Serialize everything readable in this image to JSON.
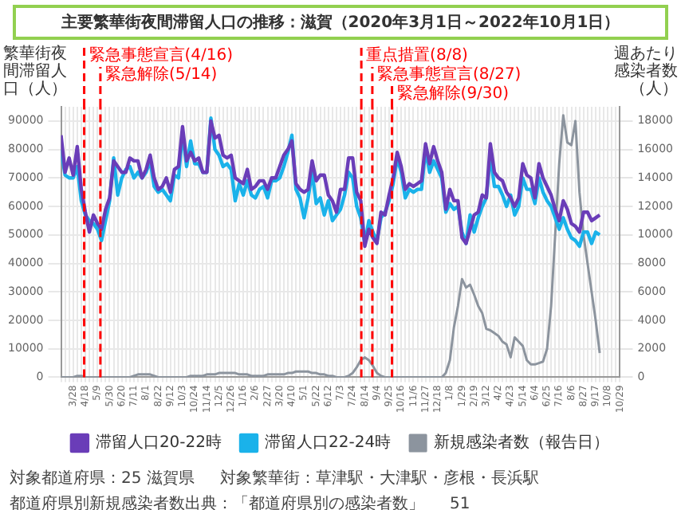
{
  "chart_data": {
    "type": "line",
    "title": "主要繁華街夜間滞留人口の推移：滋賀（2020年3月1日～2022年10月1日）",
    "ylabel": "繁華街夜間滞留人口（人）",
    "y2label": "週あたり感染者数（人）",
    "x": [
      "2020-03-07",
      "2020-03-14",
      "2020-03-21",
      "2020-03-28",
      "2020-04-04",
      "2020-04-11",
      "2020-04-18",
      "2020-04-25",
      "2020-05-02",
      "2020-05-09",
      "2020-05-16",
      "2020-05-23",
      "2020-05-30",
      "2020-06-06",
      "2020-06-13",
      "2020-06-20",
      "2020-06-27",
      "2020-07-04",
      "2020-07-11",
      "2020-07-18",
      "2020-07-25",
      "2020-08-01",
      "2020-08-08",
      "2020-08-15",
      "2020-08-22",
      "2020-08-29",
      "2020-09-05",
      "2020-09-12",
      "2020-09-19",
      "2020-09-26",
      "2020-10-03",
      "2020-10-10",
      "2020-10-17",
      "2020-10-24",
      "2020-10-31",
      "2020-11-07",
      "2020-11-14",
      "2020-11-21",
      "2020-11-28",
      "2020-12-05",
      "2020-12-12",
      "2020-12-19",
      "2020-12-26",
      "2021-01-02",
      "2021-01-09",
      "2021-01-16",
      "2021-01-23",
      "2021-01-30",
      "2021-02-06",
      "2021-02-13",
      "2021-02-20",
      "2021-02-27",
      "2021-03-06",
      "2021-03-13",
      "2021-03-20",
      "2021-03-27",
      "2021-04-03",
      "2021-04-10",
      "2021-04-17",
      "2021-04-24",
      "2021-05-01",
      "2021-05-08",
      "2021-05-15",
      "2021-05-22",
      "2021-05-29",
      "2021-06-05",
      "2021-06-12",
      "2021-06-19",
      "2021-06-26",
      "2021-07-03",
      "2021-07-10",
      "2021-07-17",
      "2021-07-24",
      "2021-07-31",
      "2021-08-07",
      "2021-08-14",
      "2021-08-21",
      "2021-08-28",
      "2021-09-04",
      "2021-09-11",
      "2021-09-18",
      "2021-09-25",
      "2021-10-02",
      "2021-10-09",
      "2021-10-16",
      "2021-10-23",
      "2021-10-30",
      "2021-11-06",
      "2021-11-13",
      "2021-11-20",
      "2021-11-27",
      "2021-12-04",
      "2021-12-11",
      "2021-12-18",
      "2021-12-25",
      "2022-01-01",
      "2022-01-08",
      "2022-01-15",
      "2022-01-22",
      "2022-01-29",
      "2022-02-05",
      "2022-02-12",
      "2022-02-19",
      "2022-02-26",
      "2022-03-05",
      "2022-03-12",
      "2022-03-19",
      "2022-03-26",
      "2022-04-02",
      "2022-04-09",
      "2022-04-16",
      "2022-04-23",
      "2022-04-30",
      "2022-05-07",
      "2022-05-14",
      "2022-05-21",
      "2022-05-28",
      "2022-06-04",
      "2022-06-11",
      "2022-06-18",
      "2022-06-25",
      "2022-07-02",
      "2022-07-09",
      "2022-07-16",
      "2022-07-23",
      "2022-07-30",
      "2022-08-06",
      "2022-08-13",
      "2022-08-20",
      "2022-08-27",
      "2022-09-03",
      "2022-09-10",
      "2022-09-17",
      "2022-09-24"
    ],
    "series": [
      {
        "name": "滞留人口20-22時",
        "color": "#6a3db8",
        "values": [
          85000,
          72000,
          77000,
          71000,
          81000,
          66000,
          58000,
          51000,
          57000,
          54000,
          52000,
          59000,
          63000,
          76000,
          74000,
          72000,
          72000,
          77000,
          76000,
          76000,
          70000,
          73000,
          78000,
          70000,
          66000,
          67000,
          70000,
          65000,
          73000,
          74000,
          88000,
          76000,
          79000,
          76000,
          77000,
          72000,
          72000,
          90000,
          84000,
          85000,
          78000,
          77000,
          78000,
          70000,
          69000,
          68000,
          73000,
          66000,
          67000,
          69000,
          69000,
          66000,
          70000,
          70000,
          74000,
          78000,
          80000,
          83000,
          68000,
          66000,
          65000,
          66000,
          76000,
          69000,
          71000,
          71000,
          64000,
          62000,
          58000,
          66000,
          66000,
          77000,
          77000,
          65000,
          62000,
          46000,
          52000,
          49000,
          47000,
          58000,
          57000,
          64000,
          70000,
          79000,
          74000,
          66000,
          68000,
          67000,
          68000,
          69000,
          82000,
          75000,
          81000,
          76000,
          72000,
          59000,
          66000,
          62000,
          62000,
          49000,
          47000,
          52000,
          57000,
          58000,
          64000,
          63000,
          82000,
          72000,
          70000,
          69000,
          65000,
          63000,
          60000,
          63000,
          75000,
          71000,
          70000,
          63000,
          75000,
          70000,
          67000,
          64000,
          59000,
          55000,
          62000,
          59000,
          54000,
          53000,
          51000,
          58000,
          58000,
          55000,
          56000,
          57000
        ]
      },
      {
        "name": "滞留人口22-24時",
        "color": "#1ab2ea",
        "values": [
          80000,
          71000,
          70000,
          70000,
          74000,
          62000,
          57000,
          55000,
          54000,
          52000,
          48000,
          55000,
          62000,
          77000,
          64000,
          70000,
          73000,
          74000,
          70000,
          72000,
          70000,
          72000,
          76000,
          67000,
          65000,
          66000,
          64000,
          62000,
          71000,
          70000,
          86000,
          74000,
          83000,
          75000,
          75000,
          72000,
          72000,
          91000,
          80000,
          78000,
          74000,
          75000,
          73000,
          62000,
          68000,
          64000,
          69000,
          64000,
          63000,
          66000,
          67000,
          63000,
          69000,
          69000,
          70000,
          74000,
          79000,
          85000,
          66000,
          63000,
          56000,
          63000,
          72000,
          61000,
          63000,
          57000,
          62000,
          55000,
          57000,
          59000,
          64000,
          72000,
          70000,
          60000,
          56000,
          47000,
          55000,
          51000,
          48000,
          56000,
          58000,
          62000,
          68000,
          77000,
          72000,
          63000,
          66000,
          65000,
          66000,
          66000,
          80000,
          72000,
          76000,
          73000,
          70000,
          58000,
          61000,
          59000,
          60000,
          51000,
          47000,
          57000,
          51000,
          56000,
          60000,
          63000,
          78000,
          67000,
          67000,
          64000,
          60000,
          64000,
          57000,
          60000,
          70000,
          66000,
          66000,
          61000,
          70000,
          65000,
          62000,
          60000,
          56000,
          52000,
          56000,
          52000,
          49000,
          48000,
          46000,
          51000,
          51000,
          47000,
          51000,
          50000
        ]
      },
      {
        "name": "新規感染者数（報告日）",
        "color": "#8c949e",
        "axis": "y2",
        "values": [
          0,
          0,
          0,
          0,
          100,
          100,
          0,
          0,
          0,
          0,
          0,
          0,
          0,
          0,
          0,
          0,
          0,
          0,
          100,
          200,
          200,
          200,
          200,
          100,
          0,
          0,
          0,
          0,
          0,
          0,
          0,
          0,
          100,
          100,
          100,
          100,
          200,
          200,
          200,
          300,
          300,
          300,
          300,
          300,
          200,
          200,
          200,
          100,
          100,
          100,
          100,
          200,
          200,
          200,
          200,
          200,
          300,
          300,
          400,
          400,
          400,
          400,
          300,
          300,
          200,
          200,
          100,
          100,
          0,
          0,
          0,
          100,
          300,
          700,
          1200,
          1400,
          1200,
          800,
          300,
          100,
          0,
          0,
          0,
          0,
          0,
          0,
          0,
          0,
          0,
          0,
          0,
          0,
          0,
          0,
          0,
          300,
          1200,
          3500,
          5000,
          6900,
          6300,
          6500,
          5800,
          5000,
          4500,
          3400,
          3300,
          3100,
          2900,
          2500,
          2300,
          1400,
          2800,
          2500,
          2200,
          1200,
          900,
          900,
          1000,
          1100,
          2000,
          5000,
          10000,
          15000,
          18400,
          16500,
          16300,
          18000,
          13000,
          10000,
          8000,
          6000,
          4000,
          1700
        ]
      }
    ],
    "xlim": [
      "2020-03-07",
      "2022-10-29"
    ],
    "xticks": [
      {
        "value": "2020-03-07",
        "label": null
      },
      {
        "value": "2020-03-14",
        "label": null
      },
      {
        "value": "2020-03-21",
        "label": null
      },
      {
        "value": "2020-03-28",
        "label": "3/28"
      },
      {
        "value": "2020-04-04",
        "label": null
      },
      {
        "value": "2020-04-11",
        "label": null
      },
      {
        "value": "2020-04-18",
        "label": "4/18"
      },
      {
        "value": "2020-04-25",
        "label": null
      },
      {
        "value": "2020-05-02",
        "label": null
      },
      {
        "value": "2020-05-09",
        "label": "5/9"
      },
      {
        "value": "2020-05-16",
        "label": null
      },
      {
        "value": "2020-05-23",
        "label": null
      },
      {
        "value": "2020-05-30",
        "label": "5/30"
      },
      {
        "value": "2020-06-06",
        "label": null
      },
      {
        "value": "2020-06-13",
        "label": null
      },
      {
        "value": "2020-06-20",
        "label": "6/20"
      },
      {
        "value": "2020-06-27",
        "label": null
      },
      {
        "value": "2020-07-04",
        "label": null
      },
      {
        "value": "2020-07-11",
        "label": "7/11"
      },
      {
        "value": "2020-07-18",
        "label": null
      },
      {
        "value": "2020-07-25",
        "label": null
      },
      {
        "value": "2020-08-01",
        "label": "8/1"
      },
      {
        "value": "2020-08-08",
        "label": null
      },
      {
        "value": "2020-08-15",
        "label": null
      },
      {
        "value": "2020-08-22",
        "label": "8/22"
      },
      {
        "value": "2020-08-29",
        "label": null
      },
      {
        "value": "2020-09-05",
        "label": null
      },
      {
        "value": "2020-09-12",
        "label": "9/12"
      },
      {
        "value": "2020-09-19",
        "label": null
      },
      {
        "value": "2020-09-26",
        "label": null
      },
      {
        "value": "2020-10-03",
        "label": "10/3"
      },
      {
        "value": "2020-10-10",
        "label": null
      },
      {
        "value": "2020-10-17",
        "label": null
      },
      {
        "value": "2020-10-24",
        "label": "10/24"
      },
      {
        "value": "2020-10-31",
        "label": null
      },
      {
        "value": "2020-11-07",
        "label": null
      },
      {
        "value": "2020-11-14",
        "label": "11/14"
      },
      {
        "value": "2020-11-21",
        "label": null
      },
      {
        "value": "2020-11-28",
        "label": null
      },
      {
        "value": "2020-12-05",
        "label": "12/5"
      },
      {
        "value": "2020-12-12",
        "label": null
      },
      {
        "value": "2020-12-19",
        "label": null
      },
      {
        "value": "2020-12-26",
        "label": "12/26"
      },
      {
        "value": "2021-01-02",
        "label": null
      },
      {
        "value": "2021-01-09",
        "label": null
      },
      {
        "value": "2021-01-16",
        "label": "1/16"
      },
      {
        "value": "2021-01-23",
        "label": null
      },
      {
        "value": "2021-01-30",
        "label": null
      },
      {
        "value": "2021-02-06",
        "label": "2/6"
      },
      {
        "value": "2021-02-13",
        "label": null
      },
      {
        "value": "2021-02-20",
        "label": null
      },
      {
        "value": "2021-02-27",
        "label": "2/27"
      },
      {
        "value": "2021-03-06",
        "label": null
      },
      {
        "value": "2021-03-13",
        "label": null
      },
      {
        "value": "2021-03-20",
        "label": "3/20"
      },
      {
        "value": "2021-03-27",
        "label": null
      },
      {
        "value": "2021-04-03",
        "label": null
      },
      {
        "value": "2021-04-10",
        "label": "4/10"
      },
      {
        "value": "2021-04-17",
        "label": null
      },
      {
        "value": "2021-04-24",
        "label": null
      },
      {
        "value": "2021-05-01",
        "label": "5/1"
      },
      {
        "value": "2021-05-08",
        "label": null
      },
      {
        "value": "2021-05-15",
        "label": null
      },
      {
        "value": "2021-05-22",
        "label": "5/22"
      },
      {
        "value": "2021-05-29",
        "label": null
      },
      {
        "value": "2021-06-05",
        "label": null
      },
      {
        "value": "2021-06-12",
        "label": "6/12"
      },
      {
        "value": "2021-06-19",
        "label": null
      },
      {
        "value": "2021-06-26",
        "label": null
      },
      {
        "value": "2021-07-03",
        "label": "7/3"
      },
      {
        "value": "2021-07-10",
        "label": null
      },
      {
        "value": "2021-07-17",
        "label": null
      },
      {
        "value": "2021-07-24",
        "label": "7/24"
      },
      {
        "value": "2021-07-31",
        "label": null
      },
      {
        "value": "2021-08-07",
        "label": null
      },
      {
        "value": "2021-08-14",
        "label": "8/14"
      },
      {
        "value": "2021-08-21",
        "label": null
      },
      {
        "value": "2021-08-28",
        "label": null
      },
      {
        "value": "2021-09-04",
        "label": "9/4"
      },
      {
        "value": "2021-09-11",
        "label": null
      },
      {
        "value": "2021-09-18",
        "label": null
      },
      {
        "value": "2021-09-25",
        "label": "9/25"
      },
      {
        "value": "2021-10-02",
        "label": null
      },
      {
        "value": "2021-10-09",
        "label": null
      },
      {
        "value": "2021-10-16",
        "label": "10/16"
      },
      {
        "value": "2021-10-23",
        "label": null
      },
      {
        "value": "2021-10-30",
        "label": null
      },
      {
        "value": "2021-11-06",
        "label": "11/6"
      },
      {
        "value": "2021-11-13",
        "label": null
      },
      {
        "value": "2021-11-20",
        "label": null
      },
      {
        "value": "2021-11-27",
        "label": "11/27"
      },
      {
        "value": "2021-12-04",
        "label": null
      },
      {
        "value": "2021-12-11",
        "label": null
      },
      {
        "value": "2021-12-18",
        "label": "12/18"
      },
      {
        "value": "2021-12-25",
        "label": null
      },
      {
        "value": "2022-01-01",
        "label": null
      },
      {
        "value": "2022-01-08",
        "label": "1/8"
      },
      {
        "value": "2022-01-15",
        "label": null
      },
      {
        "value": "2022-01-22",
        "label": null
      },
      {
        "value": "2022-01-29",
        "label": "1/29"
      },
      {
        "value": "2022-02-05",
        "label": null
      },
      {
        "value": "2022-02-12",
        "label": null
      },
      {
        "value": "2022-02-19",
        "label": "2/19"
      },
      {
        "value": "2022-02-26",
        "label": null
      },
      {
        "value": "2022-03-05",
        "label": null
      },
      {
        "value": "2022-03-12",
        "label": "3/12"
      },
      {
        "value": "2022-03-19",
        "label": null
      },
      {
        "value": "2022-03-26",
        "label": null
      },
      {
        "value": "2022-04-02",
        "label": "4/2"
      },
      {
        "value": "2022-04-09",
        "label": null
      },
      {
        "value": "2022-04-16",
        "label": null
      },
      {
        "value": "2022-04-23",
        "label": "4/23"
      },
      {
        "value": "2022-04-30",
        "label": null
      },
      {
        "value": "2022-05-07",
        "label": null
      },
      {
        "value": "2022-05-14",
        "label": "5/14"
      },
      {
        "value": "2022-05-21",
        "label": null
      },
      {
        "value": "2022-05-28",
        "label": null
      },
      {
        "value": "2022-06-04",
        "label": "6/4"
      },
      {
        "value": "2022-06-11",
        "label": null
      },
      {
        "value": "2022-06-18",
        "label": null
      },
      {
        "value": "2022-06-25",
        "label": "6/25"
      },
      {
        "value": "2022-07-02",
        "label": null
      },
      {
        "value": "2022-07-09",
        "label": null
      },
      {
        "value": "2022-07-16",
        "label": "7/16"
      },
      {
        "value": "2022-07-23",
        "label": null
      },
      {
        "value": "2022-07-30",
        "label": null
      },
      {
        "value": "2022-08-06",
        "label": "8/6"
      },
      {
        "value": "2022-08-13",
        "label": null
      },
      {
        "value": "2022-08-20",
        "label": null
      },
      {
        "value": "2022-08-27",
        "label": "8/27"
      },
      {
        "value": "2022-09-03",
        "label": null
      },
      {
        "value": "2022-09-10",
        "label": null
      },
      {
        "value": "2022-09-17",
        "label": "9/17"
      },
      {
        "value": "2022-09-24",
        "label": null
      },
      {
        "value": "2022-10-01",
        "label": null
      },
      {
        "value": "2022-10-08",
        "label": "10/8"
      },
      {
        "value": "2022-10-15",
        "label": null
      },
      {
        "value": "2022-10-22",
        "label": null
      },
      {
        "value": "2022-10-29",
        "label": "10/29"
      }
    ],
    "ylim": [
      0,
      95000
    ],
    "yticks": [
      0,
      10000,
      20000,
      30000,
      40000,
      50000,
      60000,
      70000,
      80000,
      90000
    ],
    "y2lim": [
      0,
      19000
    ],
    "y2ticks": [
      0,
      2000,
      4000,
      6000,
      8000,
      10000,
      12000,
      14000,
      16000,
      18000
    ],
    "ref_lines": [
      {
        "axis": "x",
        "value": "2020-04-16",
        "label": "緊急事態宣言(4/16)",
        "color": "#ff0000",
        "line_style": "dashed"
      },
      {
        "axis": "x",
        "value": "2020-05-14",
        "label": "緊急解除(5/14)",
        "color": "#ff0000",
        "line_style": "dashed"
      },
      {
        "axis": "x",
        "value": "2021-08-08",
        "label": "重点措置(8/8)",
        "color": "#ff0000",
        "line_style": "dashed"
      },
      {
        "axis": "x",
        "value": "2021-08-27",
        "label": "緊急事態宣言(8/27)",
        "color": "#ff0000",
        "line_style": "dashed"
      },
      {
        "axis": "x",
        "value": "2021-09-30",
        "label": "緊急解除(9/30)",
        "color": "#ff0000",
        "line_style": "dashed"
      }
    ],
    "annotations": [
      "対象都道府県：25 滋賀県",
      "対象繁華街：草津駅・大津駅・彦根・長浜駅",
      "都道府県別新規感染者数出典：「都道府県別の感染者数」",
      "51"
    ],
    "grid": true,
    "legend": "bottom",
    "marker": "none",
    "line_style": "solid"
  }
}
